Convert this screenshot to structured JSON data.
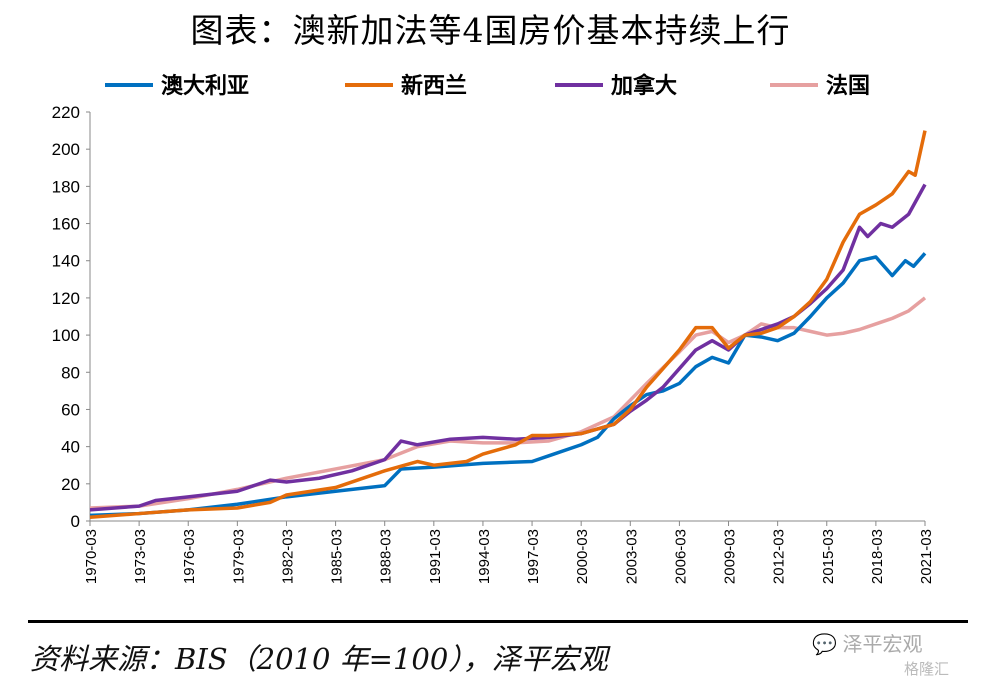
{
  "title": "图表：澳新加法等4国房价基本持续上行",
  "source": "资料来源：BIS（2010 年=100），泽平宏观",
  "watermark": {
    "account": "泽平宏观",
    "platform": "格隆汇"
  },
  "chart_data": {
    "type": "line",
    "title": "图表：澳新加法等4国房价基本持续上行",
    "xlabel": "",
    "ylabel": "",
    "ylim": [
      0,
      220
    ],
    "yticks": [
      0,
      20,
      40,
      60,
      80,
      100,
      120,
      140,
      160,
      180,
      200,
      220
    ],
    "xlim": [
      1970,
      2021
    ],
    "xticks": [
      "1970-03",
      "1973-03",
      "1976-03",
      "1979-03",
      "1982-03",
      "1985-03",
      "1988-03",
      "1991-03",
      "1994-03",
      "1997-03",
      "2000-03",
      "2003-03",
      "2006-03",
      "2009-03",
      "2012-03",
      "2015-03",
      "2018-03",
      "2021-03"
    ],
    "legend": "top",
    "grid": false,
    "series": [
      {
        "name": "澳大利亚",
        "color": "#0070c0",
        "points": [
          [
            1970,
            3
          ],
          [
            1973,
            4
          ],
          [
            1976,
            6
          ],
          [
            1979,
            9
          ],
          [
            1982,
            13
          ],
          [
            1985,
            16
          ],
          [
            1988,
            19
          ],
          [
            1989,
            28
          ],
          [
            1991,
            29
          ],
          [
            1994,
            31
          ],
          [
            1997,
            32
          ],
          [
            1998,
            35
          ],
          [
            2000,
            41
          ],
          [
            2001,
            45
          ],
          [
            2002,
            55
          ],
          [
            2003,
            62
          ],
          [
            2004,
            68
          ],
          [
            2005,
            70
          ],
          [
            2006,
            74
          ],
          [
            2007,
            83
          ],
          [
            2008,
            88
          ],
          [
            2009,
            85
          ],
          [
            2010,
            100
          ],
          [
            2011,
            99
          ],
          [
            2012,
            97
          ],
          [
            2013,
            101
          ],
          [
            2014,
            110
          ],
          [
            2015,
            120
          ],
          [
            2016,
            128
          ],
          [
            2017,
            140
          ],
          [
            2018,
            142
          ],
          [
            2019,
            132
          ],
          [
            2019.8,
            140
          ],
          [
            2020.3,
            137
          ],
          [
            2021,
            144
          ]
        ]
      },
      {
        "name": "新西兰",
        "color": "#e46c0a",
        "points": [
          [
            1970,
            2
          ],
          [
            1973,
            4
          ],
          [
            1976,
            6
          ],
          [
            1979,
            7
          ],
          [
            1981,
            10
          ],
          [
            1982,
            14
          ],
          [
            1985,
            18
          ],
          [
            1988,
            27
          ],
          [
            1990,
            32
          ],
          [
            1991,
            30
          ],
          [
            1993,
            32
          ],
          [
            1994,
            36
          ],
          [
            1996,
            41
          ],
          [
            1997,
            46
          ],
          [
            1998,
            46
          ],
          [
            2000,
            47
          ],
          [
            2002,
            52
          ],
          [
            2003,
            60
          ],
          [
            2004,
            72
          ],
          [
            2005,
            82
          ],
          [
            2006,
            92
          ],
          [
            2007,
            104
          ],
          [
            2008,
            104
          ],
          [
            2009,
            93
          ],
          [
            2010,
            100
          ],
          [
            2011,
            101
          ],
          [
            2012,
            104
          ],
          [
            2013,
            110
          ],
          [
            2014,
            118
          ],
          [
            2015,
            130
          ],
          [
            2016,
            150
          ],
          [
            2017,
            165
          ],
          [
            2018,
            170
          ],
          [
            2019,
            176
          ],
          [
            2020,
            188
          ],
          [
            2020.4,
            186
          ],
          [
            2021,
            210
          ]
        ]
      },
      {
        "name": "加拿大",
        "color": "#7030a0",
        "points": [
          [
            1970,
            6
          ],
          [
            1973,
            8
          ],
          [
            1974,
            11
          ],
          [
            1976,
            13
          ],
          [
            1979,
            16
          ],
          [
            1981,
            22
          ],
          [
            1982,
            21
          ],
          [
            1984,
            23
          ],
          [
            1986,
            27
          ],
          [
            1988,
            33
          ],
          [
            1989,
            43
          ],
          [
            1990,
            41
          ],
          [
            1992,
            44
          ],
          [
            1994,
            45
          ],
          [
            1996,
            44
          ],
          [
            1998,
            45
          ],
          [
            2000,
            47
          ],
          [
            2002,
            52
          ],
          [
            2003,
            59
          ],
          [
            2004,
            65
          ],
          [
            2005,
            72
          ],
          [
            2006,
            82
          ],
          [
            2007,
            92
          ],
          [
            2008,
            97
          ],
          [
            2009,
            92
          ],
          [
            2010,
            100
          ],
          [
            2011,
            103
          ],
          [
            2012,
            106
          ],
          [
            2013,
            110
          ],
          [
            2014,
            117
          ],
          [
            2015,
            125
          ],
          [
            2016,
            135
          ],
          [
            2017,
            158
          ],
          [
            2017.5,
            153
          ],
          [
            2018.3,
            160
          ],
          [
            2019,
            158
          ],
          [
            2020,
            165
          ],
          [
            2021,
            181
          ]
        ]
      },
      {
        "name": "法国",
        "color": "#e6a0a0",
        "points": [
          [
            1970,
            7
          ],
          [
            1973,
            8
          ],
          [
            1976,
            12
          ],
          [
            1979,
            17
          ],
          [
            1982,
            23
          ],
          [
            1985,
            28
          ],
          [
            1988,
            33
          ],
          [
            1990,
            40
          ],
          [
            1992,
            43
          ],
          [
            1994,
            42
          ],
          [
            1996,
            42
          ],
          [
            1998,
            43
          ],
          [
            2000,
            48
          ],
          [
            2002,
            56
          ],
          [
            2004,
            74
          ],
          [
            2006,
            91
          ],
          [
            2007,
            100
          ],
          [
            2008,
            102
          ],
          [
            2009,
            96
          ],
          [
            2010,
            100
          ],
          [
            2011,
            106
          ],
          [
            2012,
            104
          ],
          [
            2013,
            104
          ],
          [
            2014,
            102
          ],
          [
            2015,
            100
          ],
          [
            2016,
            101
          ],
          [
            2017,
            103
          ],
          [
            2018,
            106
          ],
          [
            2019,
            109
          ],
          [
            2020,
            113
          ],
          [
            2021,
            120
          ]
        ]
      }
    ]
  }
}
